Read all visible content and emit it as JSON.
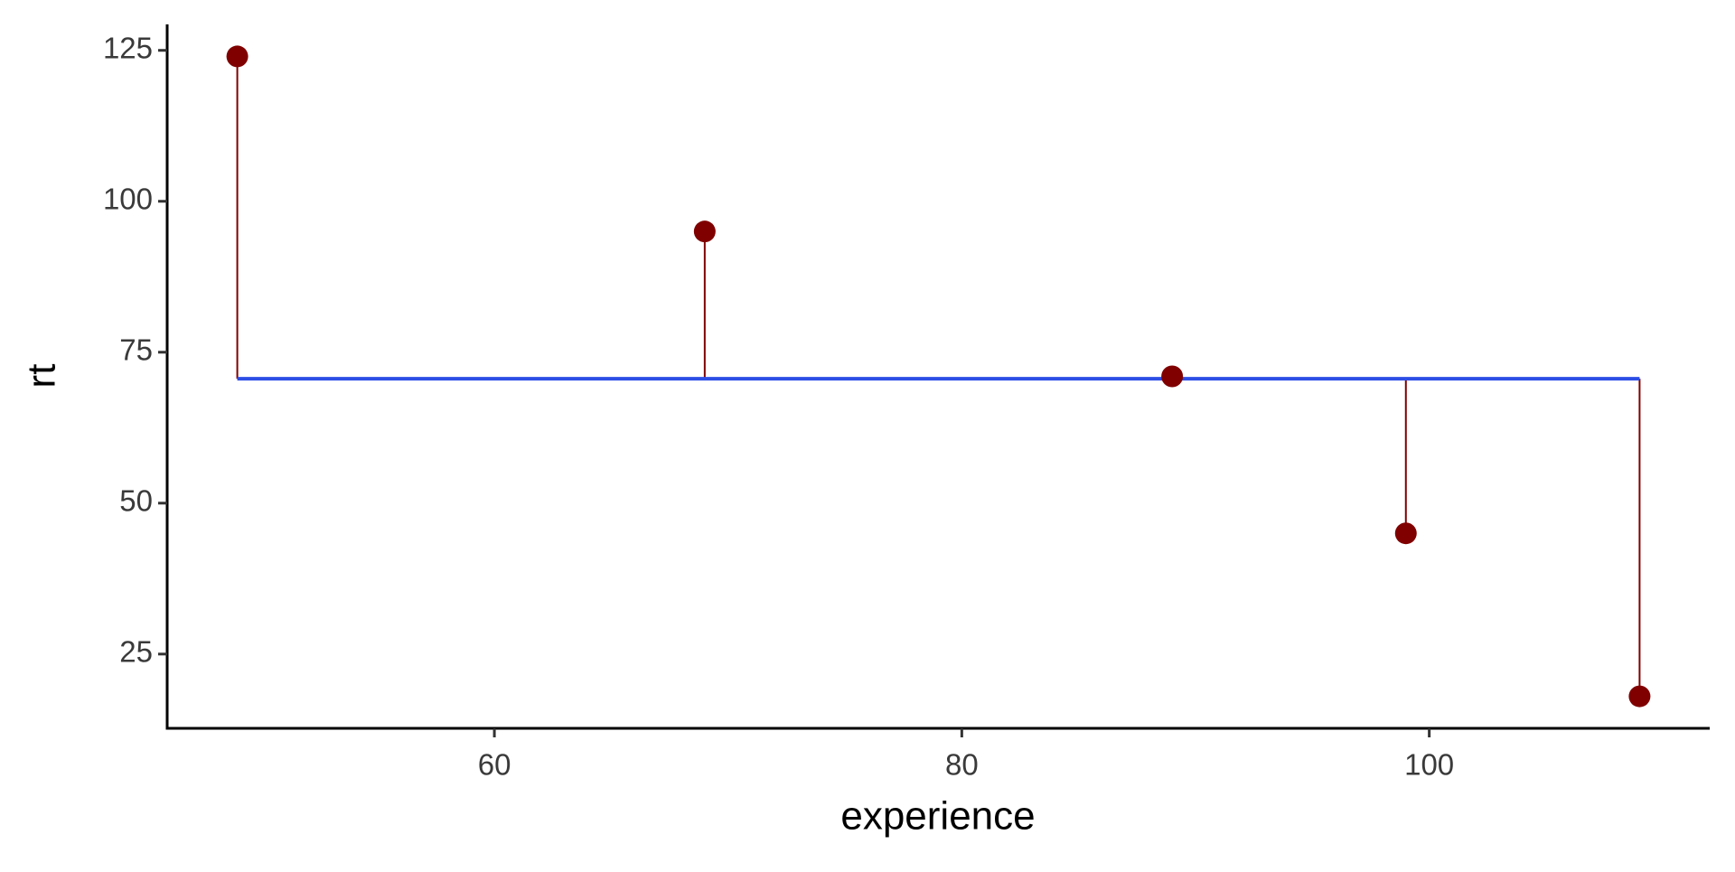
{
  "chart_data": {
    "type": "scatter",
    "x_label": "experience",
    "y_label": "rt",
    "x": [
      49,
      69,
      89,
      99,
      109
    ],
    "y": [
      124,
      95,
      71,
      45,
      18
    ],
    "hline": 70.6,
    "point_color": "#800000",
    "line_color": "#2d4ee6",
    "xlim": [
      46,
      112
    ],
    "xticks": [
      60,
      80,
      100
    ],
    "ylim": [
      12.7,
      129.3
    ],
    "yticks": [
      25,
      50,
      75,
      100,
      125
    ],
    "grid": false
  }
}
